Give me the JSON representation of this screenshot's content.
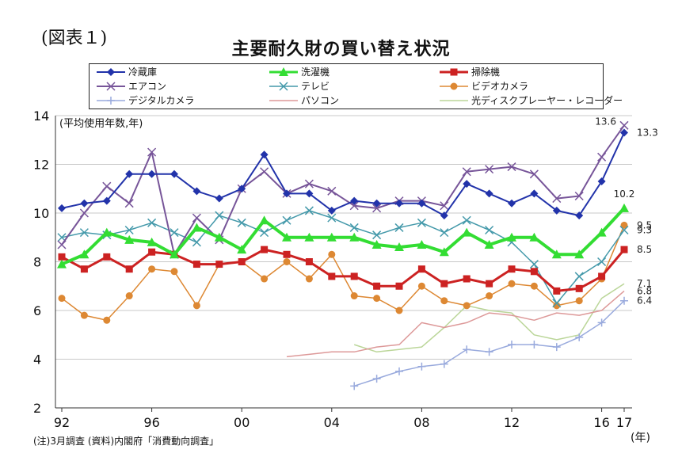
{
  "figure_label": "(図表１)",
  "footnote": "(注)3月調査 (資料)内閣府「消費動向調査」",
  "x_unit": "(年)",
  "chart_data": {
    "type": "line",
    "title": "主要耐久財の買い替え状況",
    "ylabel": "(平均使用年数,年)",
    "ylim": [
      2,
      14
    ],
    "yticks": [
      2,
      4,
      6,
      8,
      10,
      12,
      14
    ],
    "x": [
      1992,
      1993,
      1994,
      1995,
      1996,
      1997,
      1998,
      1999,
      2000,
      2001,
      2002,
      2003,
      2004,
      2005,
      2006,
      2007,
      2008,
      2009,
      2010,
      2011,
      2012,
      2013,
      2014,
      2015,
      2016,
      2017
    ],
    "xticks": [
      {
        "x": 1992,
        "label": "92"
      },
      {
        "x": 1996,
        "label": "96"
      },
      {
        "x": 2000,
        "label": "00"
      },
      {
        "x": 2004,
        "label": "04"
      },
      {
        "x": 2008,
        "label": "08"
      },
      {
        "x": 2012,
        "label": "12"
      },
      {
        "x": 2016,
        "label": "16"
      },
      {
        "x": 2017,
        "label": "17"
      }
    ],
    "grid": "horizontal",
    "legend": "top",
    "series": [
      {
        "name": "冷蔵庫",
        "color": "#2233aa",
        "marker": "diamond",
        "width": 2,
        "values": [
          10.2,
          10.4,
          10.5,
          11.6,
          11.6,
          11.6,
          10.9,
          10.6,
          11.0,
          12.4,
          10.8,
          10.8,
          10.1,
          10.5,
          10.4,
          10.4,
          10.4,
          9.9,
          11.2,
          10.8,
          10.4,
          10.8,
          10.1,
          9.9,
          11.3,
          13.3
        ]
      },
      {
        "name": "洗濯機",
        "color": "#33dd33",
        "marker": "triangle",
        "width": 4,
        "values": [
          7.9,
          8.3,
          9.2,
          8.9,
          8.8,
          8.3,
          9.4,
          9.0,
          8.5,
          9.7,
          9.0,
          9.0,
          9.0,
          9.0,
          8.7,
          8.6,
          8.7,
          8.4,
          9.2,
          8.7,
          9.0,
          9.0,
          8.3,
          8.3,
          9.2,
          10.2
        ]
      },
      {
        "name": "掃除機",
        "color": "#cc2222",
        "marker": "square",
        "width": 3,
        "values": [
          8.2,
          7.7,
          8.2,
          7.7,
          8.4,
          8.3,
          7.9,
          7.9,
          8.0,
          8.5,
          8.3,
          8.0,
          7.4,
          7.4,
          7.0,
          7.0,
          7.7,
          7.1,
          7.3,
          7.1,
          7.7,
          7.6,
          6.8,
          6.9,
          7.4,
          8.5
        ]
      },
      {
        "name": "エアコン",
        "color": "#775599",
        "marker": "x",
        "width": 2,
        "values": [
          8.7,
          10.0,
          11.1,
          10.4,
          12.5,
          8.3,
          9.8,
          8.9,
          11.0,
          11.7,
          10.8,
          11.2,
          10.9,
          10.3,
          10.2,
          10.5,
          10.5,
          10.3,
          11.7,
          11.8,
          11.9,
          11.6,
          10.6,
          10.7,
          12.3,
          13.6
        ]
      },
      {
        "name": "テレビ",
        "color": "#4499aa",
        "marker": "x",
        "width": 1.5,
        "values": [
          9.0,
          9.2,
          9.1,
          9.3,
          9.6,
          9.2,
          8.8,
          9.9,
          9.6,
          9.2,
          9.7,
          10.1,
          9.8,
          9.4,
          9.1,
          9.4,
          9.6,
          9.2,
          9.7,
          9.3,
          8.8,
          7.9,
          6.3,
          7.4,
          8.0,
          9.3
        ]
      },
      {
        "name": "ビデオカメラ",
        "color": "#dd8833",
        "marker": "circle",
        "width": 1.5,
        "values": [
          6.5,
          5.8,
          5.6,
          6.6,
          7.7,
          7.6,
          6.2,
          7.9,
          8.0,
          7.3,
          8.0,
          7.3,
          8.3,
          6.6,
          6.5,
          6.0,
          7.0,
          6.4,
          6.2,
          6.6,
          7.1,
          7.0,
          6.2,
          6.4,
          7.3,
          9.5
        ]
      },
      {
        "name": "デジタルカメラ",
        "color": "#99aadd",
        "marker": "plus",
        "width": 1.5,
        "values": [
          null,
          null,
          null,
          null,
          null,
          null,
          null,
          null,
          null,
          null,
          null,
          null,
          null,
          2.9,
          3.2,
          3.5,
          3.7,
          3.8,
          4.4,
          4.3,
          4.6,
          4.6,
          4.5,
          4.9,
          5.5,
          6.4
        ]
      },
      {
        "name": "パソコン",
        "color": "#dd9999",
        "marker": "none",
        "width": 1.5,
        "values": [
          null,
          null,
          null,
          null,
          null,
          null,
          null,
          null,
          null,
          null,
          4.1,
          4.2,
          4.3,
          4.3,
          4.5,
          4.6,
          5.5,
          5.3,
          5.5,
          5.9,
          5.8,
          5.6,
          5.9,
          5.8,
          6.0,
          6.8
        ]
      },
      {
        "name": "光ディスクプレーヤー・レコーダー",
        "color": "#bbd699",
        "marker": "none",
        "width": 1.5,
        "values": [
          null,
          null,
          null,
          null,
          null,
          null,
          null,
          null,
          null,
          null,
          null,
          null,
          null,
          4.6,
          4.3,
          4.4,
          4.5,
          5.3,
          6.2,
          6.0,
          5.9,
          5.0,
          4.8,
          5.0,
          6.5,
          7.1
        ]
      }
    ],
    "end_labels": [
      {
        "text": "13.6",
        "value": 13.6,
        "side": "left"
      },
      {
        "text": "13.3",
        "value": 13.3,
        "side": "right"
      },
      {
        "text": "10.2",
        "value": 10.2,
        "side": "above"
      },
      {
        "text": "9.5",
        "value": 9.5,
        "side": "right"
      },
      {
        "text": "9.3",
        "value": 9.3,
        "side": "right"
      },
      {
        "text": "8.5",
        "value": 8.5,
        "side": "right"
      },
      {
        "text": "7.1",
        "value": 7.1,
        "side": "right"
      },
      {
        "text": "6.8",
        "value": 6.8,
        "side": "right"
      },
      {
        "text": "6.4",
        "value": 6.4,
        "side": "right"
      }
    ]
  }
}
